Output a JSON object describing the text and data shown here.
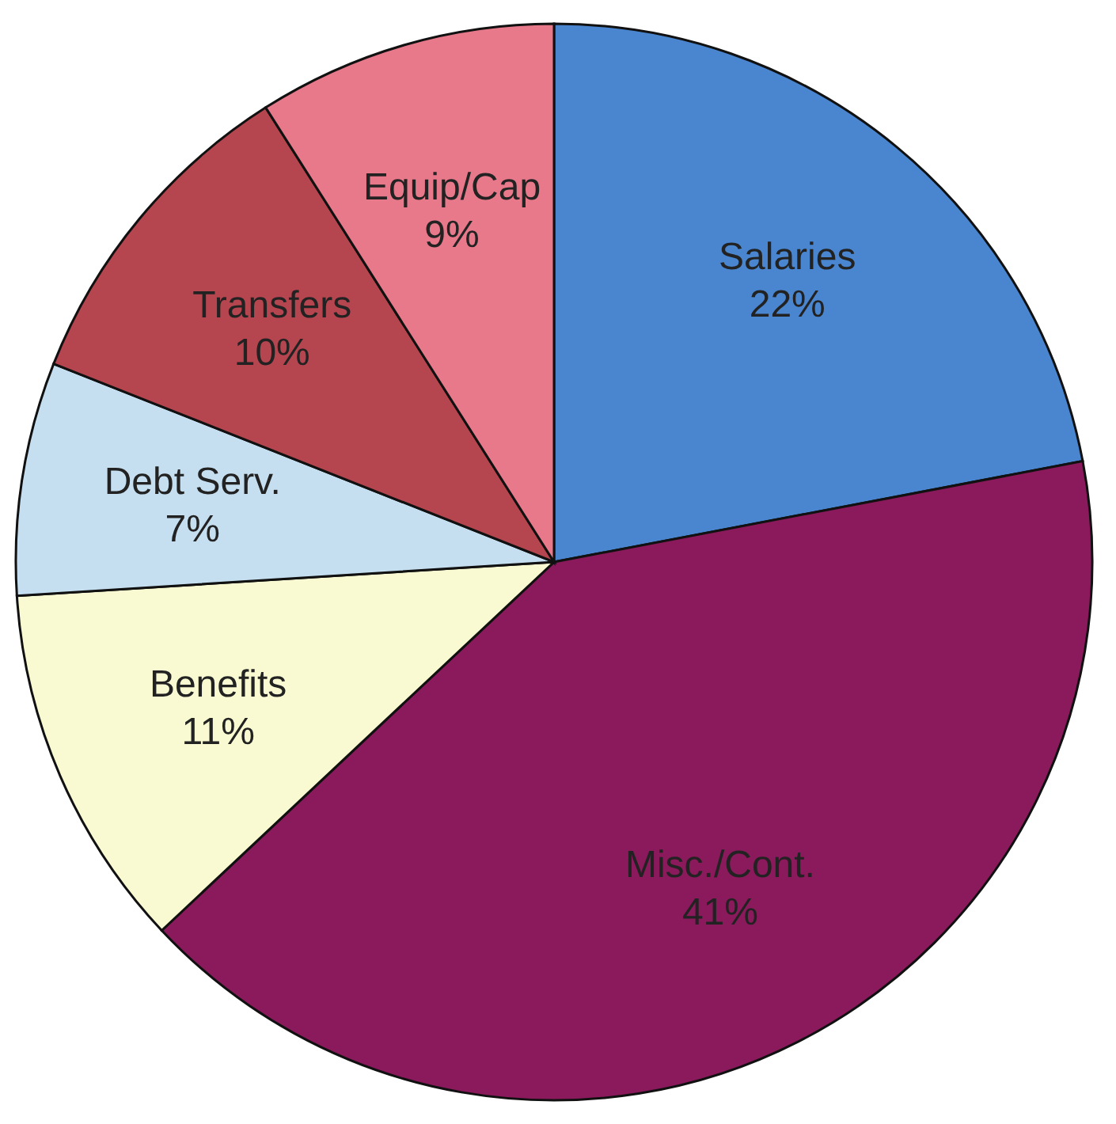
{
  "chart_data": {
    "type": "pie",
    "categories": [
      "Salaries",
      "Misc./Cont.",
      "Benefits",
      "Debt Serv.",
      "Transfers",
      "Equip/Cap"
    ],
    "values": [
      22,
      41,
      11,
      7,
      10,
      9
    ],
    "value_labels": [
      "22%",
      "41%",
      "11%",
      "7%",
      "10%",
      "9%"
    ],
    "colors": [
      "#4a86d0",
      "#8b1a5c",
      "#fafad2",
      "#c5dff0",
      "#b5454f",
      "#e8798a"
    ],
    "legend": false
  }
}
